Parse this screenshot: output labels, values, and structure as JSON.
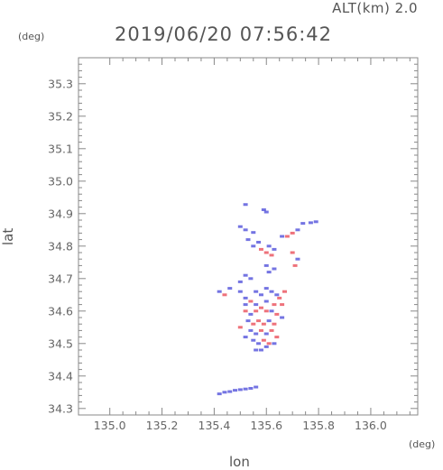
{
  "header": {
    "alt_label": "ALT(km)  2.0",
    "timestamp": "2019/06/20  07:56:42"
  },
  "chart_data": {
    "type": "scatter",
    "title": "2019/06/20  07:56:42",
    "xlabel": "lon",
    "ylabel": "lat",
    "x_unit": "(deg)",
    "y_unit": "(deg)",
    "xlim": [
      134.88,
      136.18
    ],
    "ylim": [
      34.28,
      35.38
    ],
    "x_ticks": [
      "135.0",
      "135.2",
      "135.4",
      "135.6",
      "135.8",
      "136.0"
    ],
    "y_ticks": [
      "34.3",
      "34.4",
      "34.5",
      "34.6",
      "34.7",
      "34.8",
      "34.9",
      "35.0",
      "35.1",
      "35.2",
      "35.3"
    ],
    "grid": false,
    "colors": {
      "positive": "#e8434f",
      "negative": "#4545d8",
      "axis": "#888888"
    },
    "series": [
      {
        "values": [
          {
            "x": 135.42,
            "y": 34.345,
            "v": -1
          },
          {
            "x": 135.44,
            "y": 34.35,
            "v": -1
          },
          {
            "x": 135.46,
            "y": 34.352,
            "v": -1
          },
          {
            "x": 135.48,
            "y": 34.356,
            "v": -1
          },
          {
            "x": 135.5,
            "y": 34.358,
            "v": -1
          },
          {
            "x": 135.52,
            "y": 34.36,
            "v": -1
          },
          {
            "x": 135.54,
            "y": 34.362,
            "v": -1
          },
          {
            "x": 135.56,
            "y": 34.366,
            "v": -1
          },
          {
            "x": 135.52,
            "y": 34.928,
            "v": -1
          },
          {
            "x": 135.59,
            "y": 34.912,
            "v": -1
          },
          {
            "x": 135.6,
            "y": 34.905,
            "v": -1
          },
          {
            "x": 135.5,
            "y": 34.86,
            "v": -1
          },
          {
            "x": 135.52,
            "y": 34.85,
            "v": -1
          },
          {
            "x": 135.55,
            "y": 34.842,
            "v": -1
          },
          {
            "x": 135.53,
            "y": 34.82,
            "v": -1
          },
          {
            "x": 135.55,
            "y": 34.8,
            "v": -1
          },
          {
            "x": 135.57,
            "y": 34.812,
            "v": -1
          },
          {
            "x": 135.61,
            "y": 34.8,
            "v": -1
          },
          {
            "x": 135.63,
            "y": 34.79,
            "v": -1
          },
          {
            "x": 135.62,
            "y": 34.772,
            "v": 1
          },
          {
            "x": 135.6,
            "y": 34.78,
            "v": 1
          },
          {
            "x": 135.66,
            "y": 34.83,
            "v": -1
          },
          {
            "x": 135.68,
            "y": 34.83,
            "v": 1
          },
          {
            "x": 135.7,
            "y": 34.84,
            "v": 1
          },
          {
            "x": 135.72,
            "y": 34.85,
            "v": -1
          },
          {
            "x": 135.74,
            "y": 34.87,
            "v": -1
          },
          {
            "x": 135.77,
            "y": 34.872,
            "v": -1
          },
          {
            "x": 135.79,
            "y": 34.875,
            "v": -1
          },
          {
            "x": 135.7,
            "y": 34.78,
            "v": 1
          },
          {
            "x": 135.72,
            "y": 34.76,
            "v": -1
          },
          {
            "x": 135.71,
            "y": 34.74,
            "v": 1
          },
          {
            "x": 135.58,
            "y": 34.79,
            "v": 1
          },
          {
            "x": 135.42,
            "y": 34.66,
            "v": -1
          },
          {
            "x": 135.44,
            "y": 34.65,
            "v": 1
          },
          {
            "x": 135.46,
            "y": 34.67,
            "v": -1
          },
          {
            "x": 135.5,
            "y": 34.69,
            "v": -1
          },
          {
            "x": 135.52,
            "y": 34.71,
            "v": -1
          },
          {
            "x": 135.54,
            "y": 34.7,
            "v": -1
          },
          {
            "x": 135.5,
            "y": 34.66,
            "v": -1
          },
          {
            "x": 135.52,
            "y": 34.64,
            "v": -1
          },
          {
            "x": 135.54,
            "y": 34.63,
            "v": 1
          },
          {
            "x": 135.56,
            "y": 34.66,
            "v": -1
          },
          {
            "x": 135.58,
            "y": 34.65,
            "v": -1
          },
          {
            "x": 135.6,
            "y": 34.67,
            "v": -1
          },
          {
            "x": 135.62,
            "y": 34.66,
            "v": -1
          },
          {
            "x": 135.64,
            "y": 34.65,
            "v": -1
          },
          {
            "x": 135.65,
            "y": 34.64,
            "v": 1
          },
          {
            "x": 135.67,
            "y": 34.66,
            "v": 1
          },
          {
            "x": 135.66,
            "y": 34.62,
            "v": 1
          },
          {
            "x": 135.63,
            "y": 34.62,
            "v": 1
          },
          {
            "x": 135.61,
            "y": 34.72,
            "v": -1
          },
          {
            "x": 135.63,
            "y": 34.73,
            "v": -1
          },
          {
            "x": 135.6,
            "y": 34.74,
            "v": -1
          },
          {
            "x": 135.52,
            "y": 34.6,
            "v": 1
          },
          {
            "x": 135.54,
            "y": 34.59,
            "v": -1
          },
          {
            "x": 135.56,
            "y": 34.6,
            "v": 1
          },
          {
            "x": 135.58,
            "y": 34.61,
            "v": 1
          },
          {
            "x": 135.6,
            "y": 34.6,
            "v": 1
          },
          {
            "x": 135.62,
            "y": 34.6,
            "v": -1
          },
          {
            "x": 135.64,
            "y": 34.59,
            "v": 1
          },
          {
            "x": 135.53,
            "y": 34.57,
            "v": -1
          },
          {
            "x": 135.55,
            "y": 34.56,
            "v": 1
          },
          {
            "x": 135.57,
            "y": 34.57,
            "v": 1
          },
          {
            "x": 135.59,
            "y": 34.56,
            "v": 1
          },
          {
            "x": 135.61,
            "y": 34.57,
            "v": -1
          },
          {
            "x": 135.63,
            "y": 34.56,
            "v": 1
          },
          {
            "x": 135.54,
            "y": 34.54,
            "v": -1
          },
          {
            "x": 135.56,
            "y": 34.53,
            "v": -1
          },
          {
            "x": 135.58,
            "y": 34.54,
            "v": 1
          },
          {
            "x": 135.6,
            "y": 34.53,
            "v": -1
          },
          {
            "x": 135.62,
            "y": 34.54,
            "v": 1
          },
          {
            "x": 135.55,
            "y": 34.51,
            "v": -1
          },
          {
            "x": 135.57,
            "y": 34.5,
            "v": -1
          },
          {
            "x": 135.59,
            "y": 34.51,
            "v": 1
          },
          {
            "x": 135.61,
            "y": 34.5,
            "v": 1
          },
          {
            "x": 135.63,
            "y": 34.5,
            "v": -1
          },
          {
            "x": 135.56,
            "y": 34.48,
            "v": -1
          },
          {
            "x": 135.58,
            "y": 34.48,
            "v": -1
          },
          {
            "x": 135.6,
            "y": 34.49,
            "v": -1
          },
          {
            "x": 135.52,
            "y": 34.62,
            "v": -1
          },
          {
            "x": 135.56,
            "y": 34.62,
            "v": -1
          },
          {
            "x": 135.6,
            "y": 34.63,
            "v": -1
          },
          {
            "x": 135.5,
            "y": 34.55,
            "v": 1
          },
          {
            "x": 135.52,
            "y": 34.52,
            "v": -1
          },
          {
            "x": 135.66,
            "y": 34.58,
            "v": -1
          },
          {
            "x": 135.64,
            "y": 34.52,
            "v": 1
          }
        ]
      }
    ]
  }
}
